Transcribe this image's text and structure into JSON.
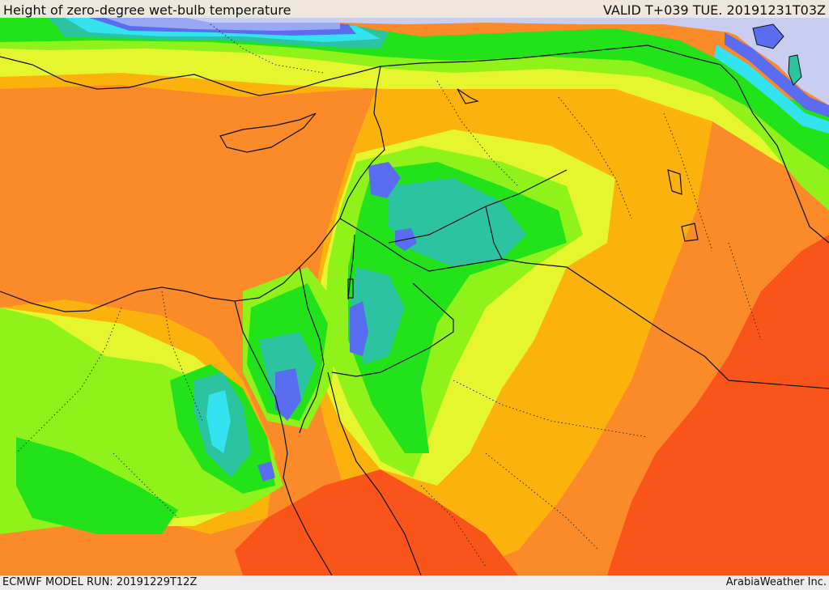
{
  "header": {
    "title": "Height of zero-degree wet-bulb temperature",
    "valid": "VALID T+039 TUE. 20191231T03Z"
  },
  "footer": {
    "model_run": "ECMWF MODEL RUN: 20191229T12Z",
    "credit": "ArabiaWeather Inc."
  },
  "palette": {
    "lavender": "#c9cdf0",
    "light_blue": "#9aa7f2",
    "blue": "#5a6cf0",
    "cyan": "#33e4f0",
    "teal": "#2cc3a0",
    "green": "#22e21a",
    "lime": "#8ff21a",
    "yellow": "#e5f52e",
    "amber": "#fcb20c",
    "orange": "#fb8a28",
    "red_orange": "#f9541a",
    "border": "#111111"
  }
}
